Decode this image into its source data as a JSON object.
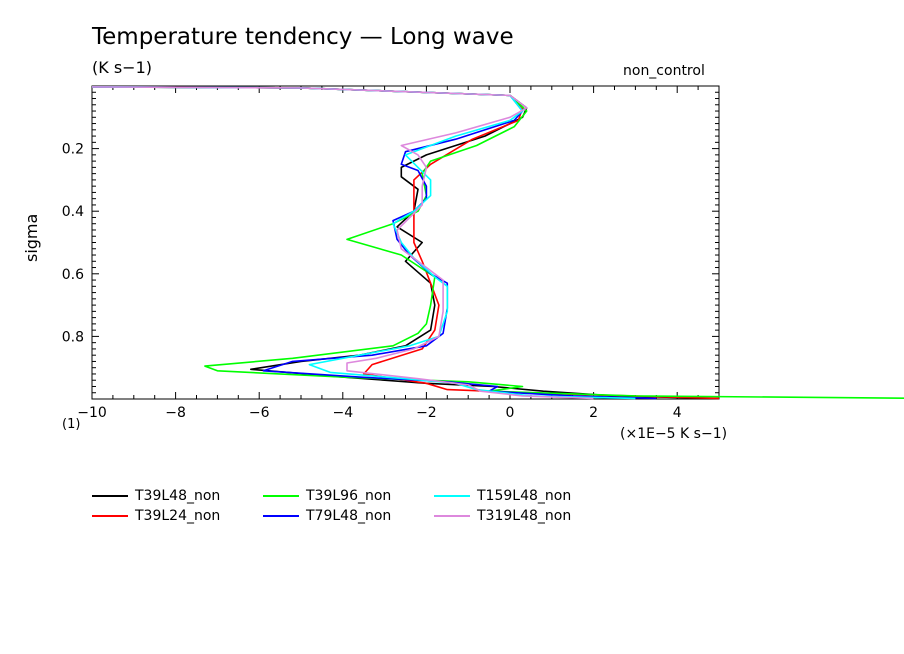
{
  "header": {
    "title": "Temperature tendency — Long wave",
    "units": "(K s−1)",
    "tag": "non_control",
    "bottom_left": "(1)",
    "x_unit": "(×1E−5 K s−1)"
  },
  "chart_data": {
    "type": "line",
    "title": "Temperature tendency — Long wave",
    "ylabel": "sigma",
    "xlabel": "(×1E−5 K s−1)",
    "xlim": [
      -10,
      5
    ],
    "ylim": [
      0.0,
      1.0
    ],
    "y_inverted": true,
    "x_ticks": [
      -10,
      -8,
      -6,
      -4,
      -2,
      0,
      2,
      4
    ],
    "x_tick_labels": [
      "−10",
      "−8",
      "−6",
      "−4",
      "−2",
      "0",
      "2",
      "4"
    ],
    "y_ticks": [
      0.2,
      0.4,
      0.6,
      0.8
    ],
    "y_tick_labels": [
      "0.2",
      "0.4",
      "0.6",
      "0.8"
    ],
    "grid": false,
    "legend_position": "below",
    "series": [
      {
        "name": "T39L48_non",
        "color": "#000000",
        "points": [
          [
            -10,
            0.003
          ],
          [
            -5,
            0.006
          ],
          [
            0,
            0.03
          ],
          [
            0.4,
            0.07
          ],
          [
            0.3,
            0.1
          ],
          [
            -0.6,
            0.16
          ],
          [
            -2.0,
            0.22
          ],
          [
            -2.6,
            0.26
          ],
          [
            -2.6,
            0.29
          ],
          [
            -2.2,
            0.33
          ],
          [
            -2.3,
            0.4
          ],
          [
            -2.7,
            0.45
          ],
          [
            -2.1,
            0.5
          ],
          [
            -2.5,
            0.56
          ],
          [
            -1.9,
            0.63
          ],
          [
            -1.8,
            0.7
          ],
          [
            -1.9,
            0.78
          ],
          [
            -2.5,
            0.83
          ],
          [
            -3.6,
            0.86
          ],
          [
            -5.0,
            0.88
          ],
          [
            -6.2,
            0.905
          ],
          [
            -4.0,
            0.93
          ],
          [
            -2.0,
            0.95
          ],
          [
            -0.4,
            0.96
          ],
          [
            0.8,
            0.975
          ],
          [
            2.5,
            0.99
          ],
          [
            5,
            0.998
          ]
        ]
      },
      {
        "name": "T39L24_non",
        "color": "#ff0000",
        "points": [
          [
            -10,
            0.003
          ],
          [
            -5,
            0.006
          ],
          [
            0,
            0.03
          ],
          [
            0.3,
            0.07
          ],
          [
            0.2,
            0.11
          ],
          [
            -0.9,
            0.17
          ],
          [
            -1.9,
            0.25
          ],
          [
            -2.3,
            0.3
          ],
          [
            -2.3,
            0.42
          ],
          [
            -2.3,
            0.5
          ],
          [
            -2.1,
            0.56
          ],
          [
            -1.9,
            0.63
          ],
          [
            -1.7,
            0.7
          ],
          [
            -1.8,
            0.78
          ],
          [
            -2.1,
            0.84
          ],
          [
            -3.3,
            0.89
          ],
          [
            -3.5,
            0.92
          ],
          [
            -2.0,
            0.95
          ],
          [
            -1.5,
            0.97
          ],
          [
            1.5,
            0.985
          ],
          [
            5,
            0.998
          ]
        ]
      },
      {
        "name": "T39L96_non",
        "color": "#00ff00",
        "points": [
          [
            -10,
            0.003
          ],
          [
            -5,
            0.006
          ],
          [
            0,
            0.03
          ],
          [
            0.4,
            0.08
          ],
          [
            0.1,
            0.13
          ],
          [
            -0.8,
            0.19
          ],
          [
            -1.9,
            0.24
          ],
          [
            -2.1,
            0.28
          ],
          [
            -2.0,
            0.35
          ],
          [
            -2.2,
            0.4
          ],
          [
            -2.8,
            0.44
          ],
          [
            -3.9,
            0.49
          ],
          [
            -2.6,
            0.54
          ],
          [
            -1.8,
            0.61
          ],
          [
            -1.9,
            0.7
          ],
          [
            -2.0,
            0.76
          ],
          [
            -2.2,
            0.79
          ],
          [
            -2.8,
            0.83
          ],
          [
            -5.2,
            0.87
          ],
          [
            -7.3,
            0.895
          ],
          [
            -7.0,
            0.91
          ],
          [
            -4.0,
            0.93
          ],
          [
            -1.0,
            0.945
          ],
          [
            0.3,
            0.96
          ],
          [
            -0.5,
            0.975
          ],
          [
            3.0,
            0.99
          ],
          [
            10,
            0.998
          ]
        ]
      },
      {
        "name": "T79L48_non",
        "color": "#0000ff",
        "points": [
          [
            -10,
            0.003
          ],
          [
            -5,
            0.006
          ],
          [
            0,
            0.03
          ],
          [
            0.3,
            0.08
          ],
          [
            0.1,
            0.11
          ],
          [
            -1.3,
            0.17
          ],
          [
            -2.5,
            0.21
          ],
          [
            -2.6,
            0.25
          ],
          [
            -2.2,
            0.27
          ],
          [
            -2.0,
            0.32
          ],
          [
            -2.0,
            0.36
          ],
          [
            -2.3,
            0.4
          ],
          [
            -2.8,
            0.43
          ],
          [
            -2.7,
            0.49
          ],
          [
            -2.4,
            0.54
          ],
          [
            -1.9,
            0.6
          ],
          [
            -1.5,
            0.63
          ],
          [
            -1.5,
            0.71
          ],
          [
            -1.6,
            0.79
          ],
          [
            -2.0,
            0.83
          ],
          [
            -3.3,
            0.86
          ],
          [
            -5.2,
            0.88
          ],
          [
            -5.9,
            0.91
          ],
          [
            -3.6,
            0.93
          ],
          [
            -1.5,
            0.945
          ],
          [
            -0.3,
            0.96
          ],
          [
            -0.5,
            0.975
          ],
          [
            1.5,
            0.99
          ],
          [
            3.5,
            0.998
          ]
        ]
      },
      {
        "name": "T159L48_non",
        "color": "#00ffff",
        "points": [
          [
            -10,
            0.003
          ],
          [
            -5,
            0.006
          ],
          [
            0,
            0.03
          ],
          [
            0.3,
            0.08
          ],
          [
            0.0,
            0.11
          ],
          [
            -1.3,
            0.16
          ],
          [
            -2.1,
            0.2
          ],
          [
            -2.5,
            0.22
          ],
          [
            -2.2,
            0.26
          ],
          [
            -1.9,
            0.3
          ],
          [
            -1.9,
            0.35
          ],
          [
            -2.3,
            0.4
          ],
          [
            -2.8,
            0.44
          ],
          [
            -2.6,
            0.5
          ],
          [
            -2.3,
            0.55
          ],
          [
            -1.8,
            0.61
          ],
          [
            -1.5,
            0.64
          ],
          [
            -1.5,
            0.72
          ],
          [
            -1.7,
            0.8
          ],
          [
            -2.4,
            0.83
          ],
          [
            -3.6,
            0.86
          ],
          [
            -4.8,
            0.89
          ],
          [
            -4.3,
            0.915
          ],
          [
            -2.5,
            0.935
          ],
          [
            -1.3,
            0.95
          ],
          [
            -0.8,
            0.97
          ],
          [
            0.5,
            0.99
          ],
          [
            3.0,
            0.998
          ]
        ]
      },
      {
        "name": "T319L48_non",
        "color": "#dd88dd",
        "points": [
          [
            -10,
            0.003
          ],
          [
            -5,
            0.006
          ],
          [
            0,
            0.03
          ],
          [
            0.4,
            0.07
          ],
          [
            0.0,
            0.1
          ],
          [
            -1.3,
            0.15
          ],
          [
            -2.6,
            0.19
          ],
          [
            -2.2,
            0.22
          ],
          [
            -2.0,
            0.26
          ],
          [
            -2.1,
            0.32
          ],
          [
            -2.1,
            0.38
          ],
          [
            -2.4,
            0.42
          ],
          [
            -2.7,
            0.46
          ],
          [
            -2.6,
            0.52
          ],
          [
            -2.0,
            0.58
          ],
          [
            -1.6,
            0.62
          ],
          [
            -1.6,
            0.72
          ],
          [
            -1.7,
            0.8
          ],
          [
            -2.3,
            0.84
          ],
          [
            -3.2,
            0.87
          ],
          [
            -3.9,
            0.885
          ],
          [
            -3.9,
            0.91
          ],
          [
            -2.2,
            0.935
          ],
          [
            -1.0,
            0.955
          ],
          [
            -0.7,
            0.975
          ],
          [
            0.3,
            0.99
          ],
          [
            2.0,
            0.998
          ]
        ]
      }
    ]
  }
}
